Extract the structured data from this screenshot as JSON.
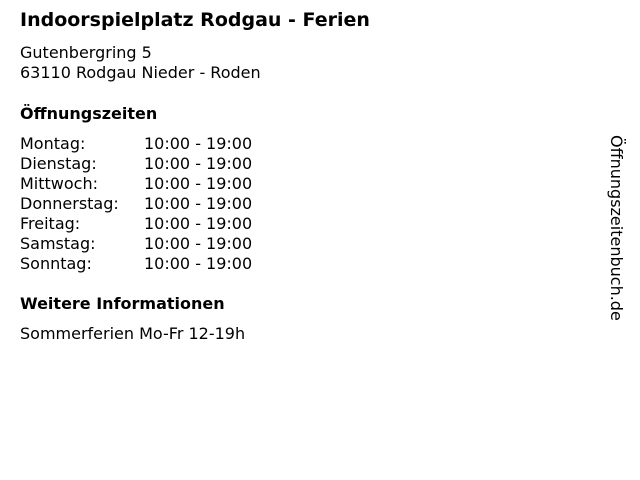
{
  "title": "Indoorspielplatz Rodgau - Ferien",
  "address": {
    "street": "Gutenbergring 5",
    "city": "63110 Rodgau Nieder - Roden"
  },
  "hours_heading": "Öffnungszeiten",
  "hours": [
    {
      "day": "Montag:",
      "time": "10:00 - 19:00"
    },
    {
      "day": "Dienstag:",
      "time": "10:00 - 19:00"
    },
    {
      "day": "Mittwoch:",
      "time": "10:00 - 19:00"
    },
    {
      "day": "Donnerstag:",
      "time": "10:00 - 19:00"
    },
    {
      "day": "Freitag:",
      "time": "10:00 - 19:00"
    },
    {
      "day": "Samstag:",
      "time": "10:00 - 19:00"
    },
    {
      "day": "Sonntag:",
      "time": "10:00 - 19:00"
    }
  ],
  "info_heading": "Weitere Informationen",
  "info_text": "Sommerferien Mo-Fr 12-19h",
  "watermark": "Öffnungszeitenbuch.de"
}
